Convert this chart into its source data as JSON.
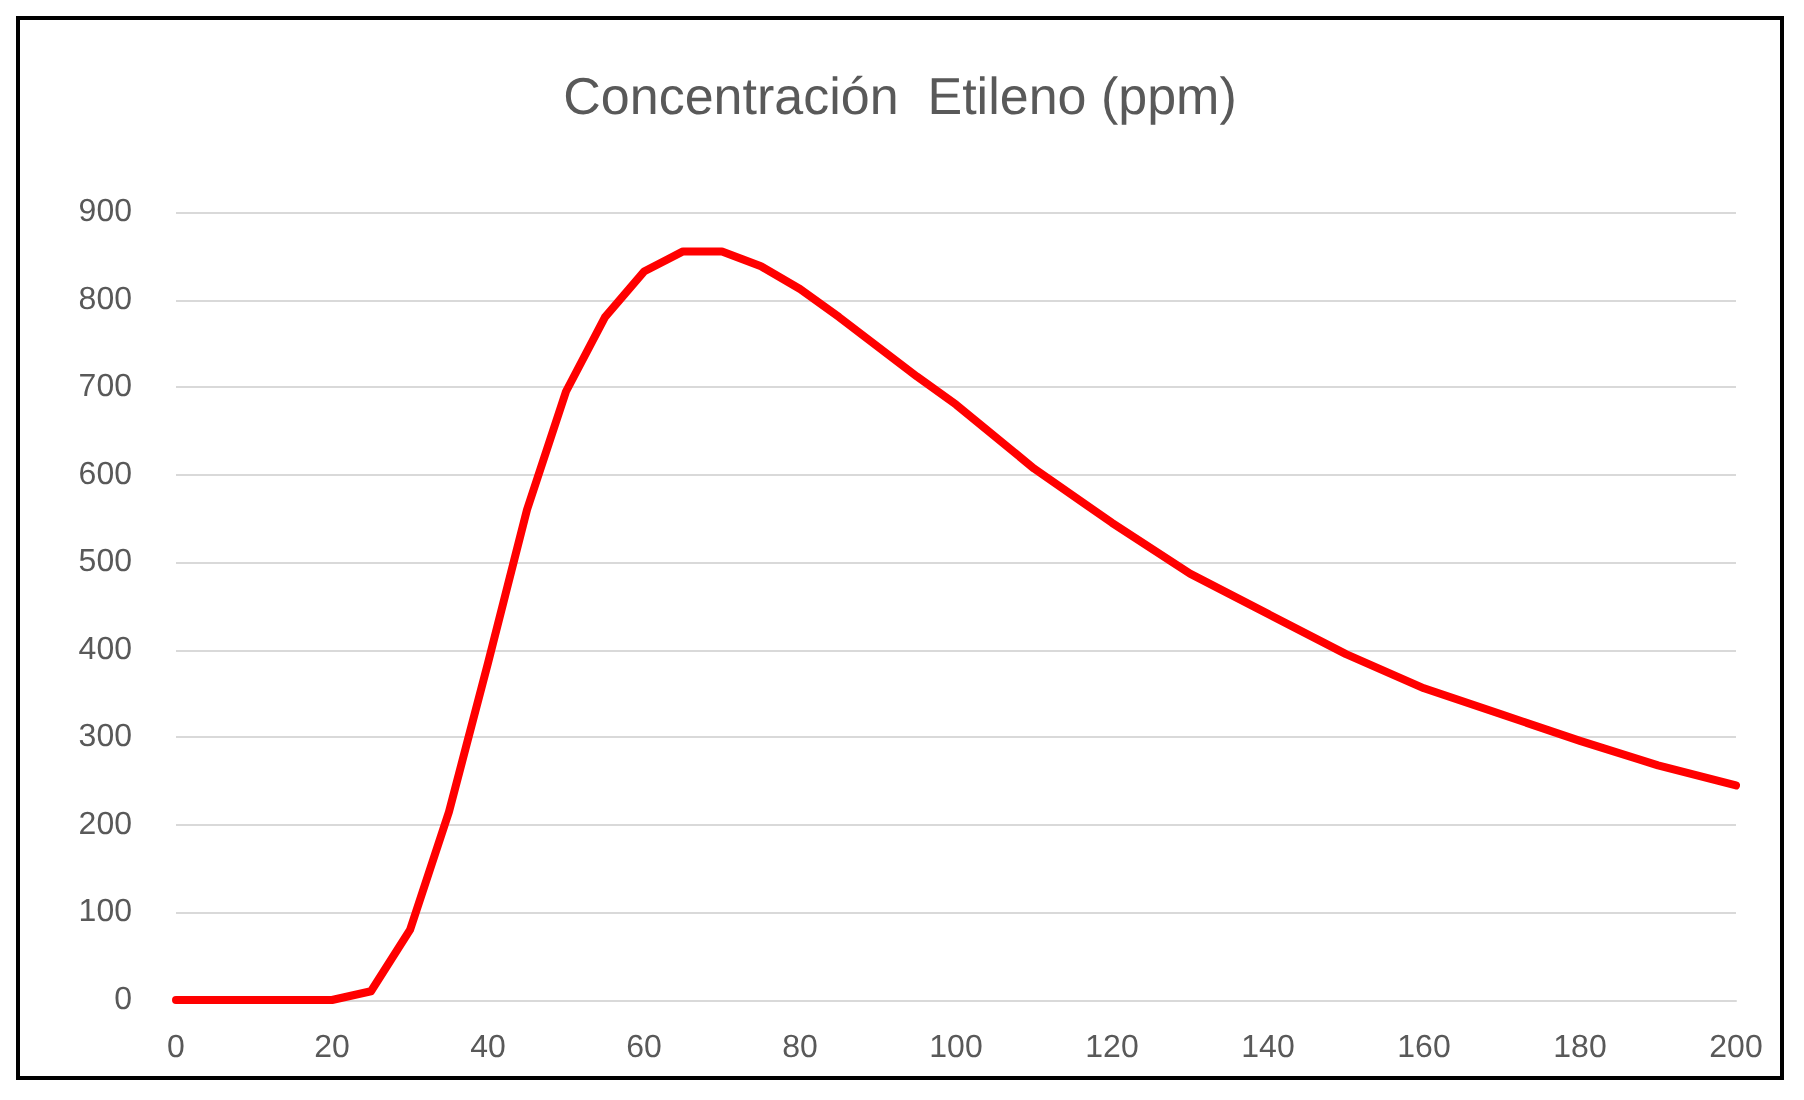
{
  "chart_data": {
    "type": "line",
    "title": "Concentración  Etileno (ppm)",
    "x": [
      0,
      5,
      10,
      15,
      20,
      25,
      30,
      35,
      40,
      45,
      50,
      55,
      60,
      65,
      70,
      75,
      80,
      85,
      90,
      95,
      100,
      110,
      120,
      130,
      140,
      150,
      160,
      170,
      180,
      190,
      200
    ],
    "series": [
      {
        "color": "#ff0000",
        "values": [
          0,
          0,
          0,
          0,
          0,
          10,
          80,
          215,
          385,
          560,
          695,
          780,
          832,
          855,
          855,
          838,
          812,
          780,
          746,
          712,
          680,
          607,
          545,
          487,
          441,
          395,
          356,
          326,
          296,
          268,
          245
        ]
      }
    ],
    "xlim": [
      0,
      200
    ],
    "xticks": [
      0,
      20,
      40,
      60,
      80,
      100,
      120,
      140,
      160,
      180,
      200
    ],
    "ylim": [
      0,
      900
    ],
    "yticks": [
      0,
      100,
      200,
      300,
      400,
      500,
      600,
      700,
      800,
      900
    ],
    "grid": "y",
    "marker": "none",
    "line_style": "solid"
  }
}
